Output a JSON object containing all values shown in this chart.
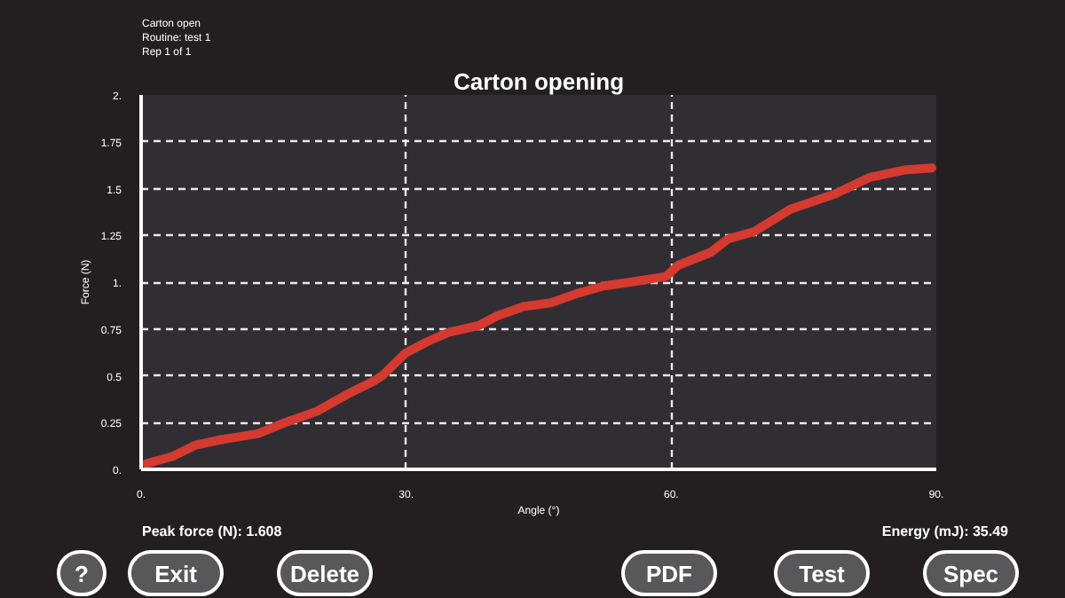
{
  "chart_data": {
    "type": "line",
    "title": "Carton opening",
    "xlabel": "Angle (°)",
    "ylabel": "Force (N)",
    "x": [
      0.6,
      3.6,
      6.2,
      9.2,
      13.2,
      16.3,
      19.9,
      23.3,
      26.3,
      27.3,
      29.9,
      32.3,
      34.7,
      38.3,
      40.3,
      43.3,
      46.4,
      49.4,
      52.4,
      55.4,
      59.4,
      60.8,
      64.5,
      66.4,
      69.4,
      73.5,
      78.5,
      82.5,
      86.5,
      89.5
    ],
    "series": [
      {
        "color": "#d43a2f",
        "values": [
          0.03,
          0.07,
          0.13,
          0.16,
          0.19,
          0.25,
          0.31,
          0.4,
          0.47,
          0.5,
          0.62,
          0.68,
          0.73,
          0.77,
          0.82,
          0.87,
          0.89,
          0.94,
          0.98,
          1.0,
          1.03,
          1.09,
          1.16,
          1.23,
          1.27,
          1.39,
          1.47,
          1.56,
          1.6,
          1.61
        ]
      }
    ],
    "xlim": [
      0,
      90
    ],
    "ylim": [
      0,
      2
    ],
    "xticks": [
      {
        "value": 0,
        "label": "0."
      },
      {
        "value": 30,
        "label": "30."
      },
      {
        "value": 60,
        "label": "60."
      },
      {
        "value": 90,
        "label": "90."
      }
    ],
    "yticks": [
      {
        "value": 0,
        "label": "0."
      },
      0.25,
      0.5,
      0.75,
      {
        "value": 1,
        "label": "1."
      },
      1.25,
      1.5,
      1.75,
      {
        "value": 2,
        "label": "2."
      }
    ],
    "grid": true,
    "line_style": "solid",
    "marker": "none",
    "annotations": [
      "Carton open",
      "Routine: test 1",
      "Rep 1 of 1",
      "Peak force (N): 1.608",
      "Energy (mJ): 35.49",
      "?",
      "Exit",
      "Delete",
      "PDF",
      "Test",
      "Spec"
    ]
  }
}
